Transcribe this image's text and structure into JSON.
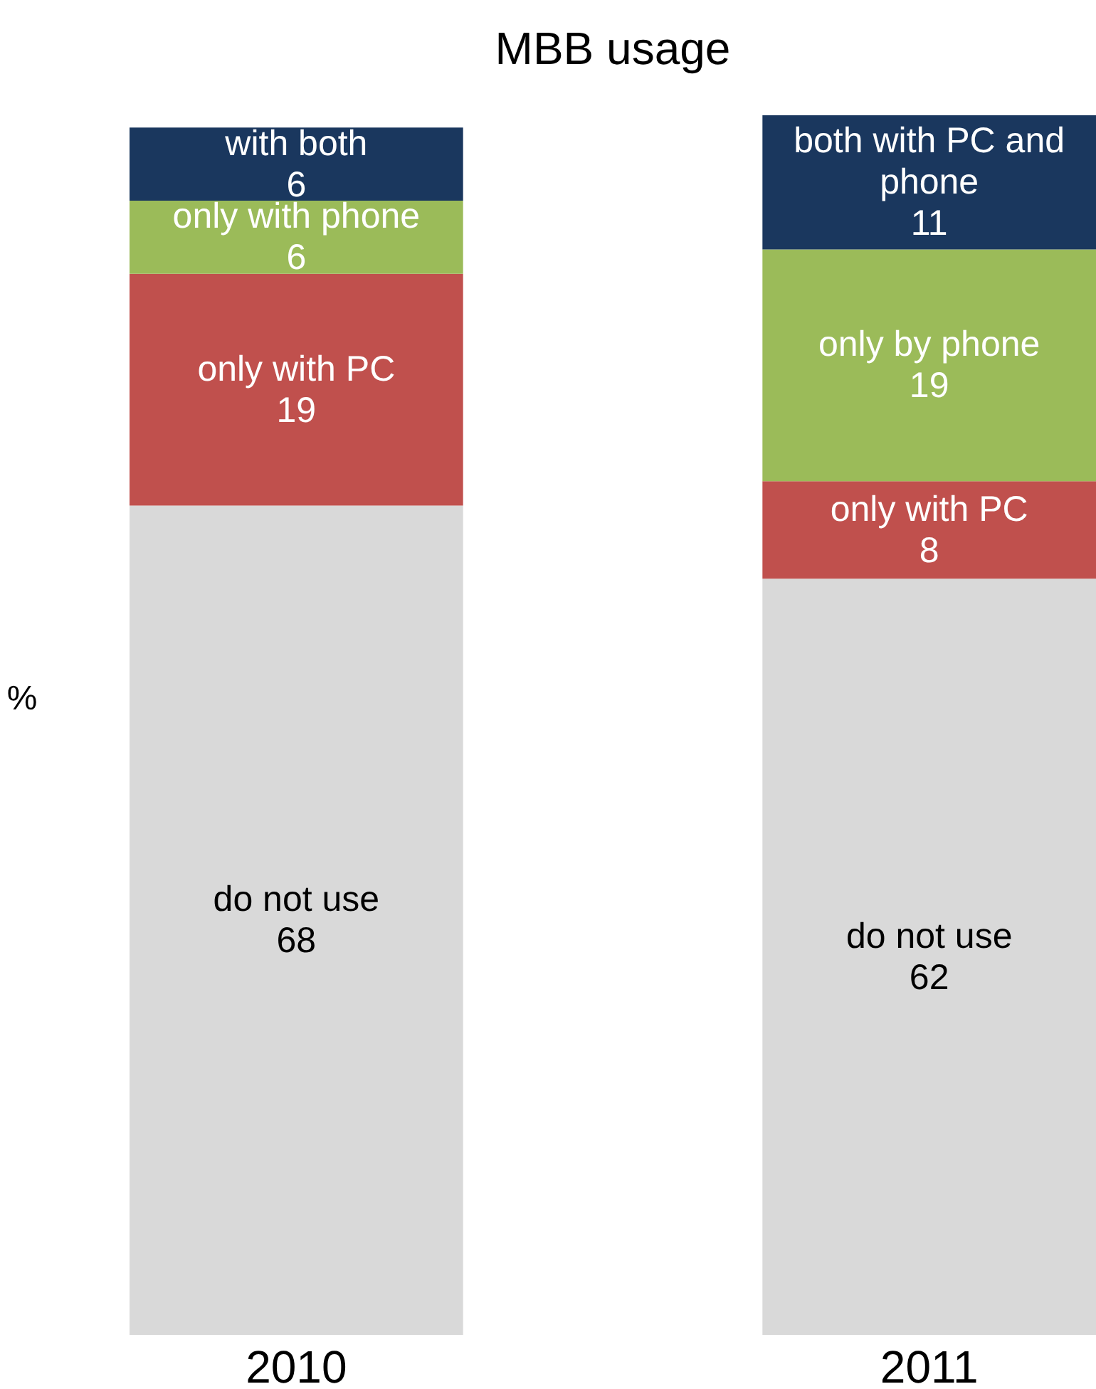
{
  "chart_data": {
    "type": "bar",
    "title": "MBB usage",
    "ylabel": "%",
    "categories": [
      "2010",
      "2011"
    ],
    "stacked": true,
    "ylim": [
      0,
      100
    ],
    "tick_labels": "x",
    "grid": false,
    "legend": false,
    "series": [
      {
        "color": "#d9d9d9",
        "values": [
          68,
          62
        ],
        "value_labels": [
          "do not use\n68",
          "do not use\n62"
        ]
      },
      {
        "color": "#c0504d",
        "values": [
          19,
          8
        ],
        "value_labels": [
          "only with PC\n19",
          "only with PC\n8"
        ]
      },
      {
        "color": "#9bbb59",
        "values": [
          6,
          19
        ],
        "value_labels": [
          "only with phone\n6",
          "only by phone\n19"
        ]
      },
      {
        "color": "#1a375e",
        "values": [
          6,
          11
        ],
        "value_labels": [
          "with both\n6",
          "both with PC and\nphone\n11"
        ]
      }
    ]
  }
}
